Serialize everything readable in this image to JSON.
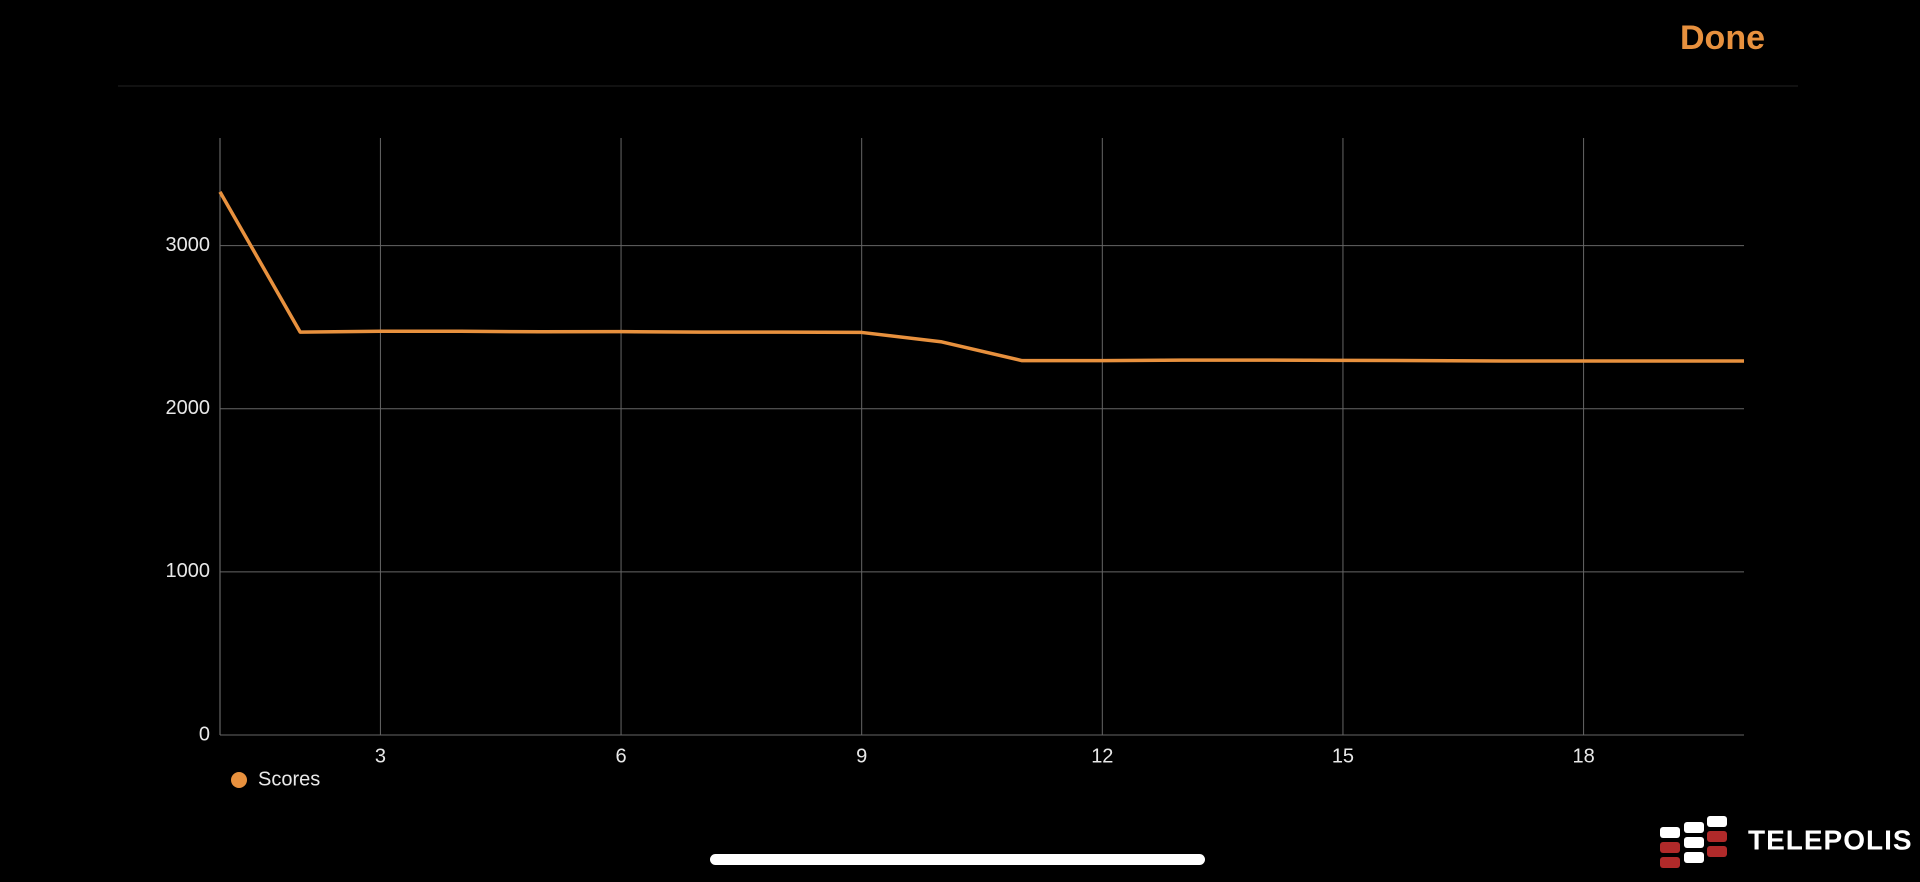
{
  "header": {
    "action": "Done"
  },
  "chart_data": {
    "type": "line",
    "x": [
      1,
      2,
      3,
      4,
      5,
      6,
      7,
      8,
      9,
      10,
      11,
      12,
      13,
      14,
      15,
      16,
      17,
      18,
      19,
      20
    ],
    "series": [
      {
        "name": "Scores",
        "color": "#e8913e",
        "values": [
          3330,
          2470,
          2475,
          2475,
          2472,
          2473,
          2470,
          2470,
          2468,
          2410,
          2295,
          2295,
          2298,
          2298,
          2297,
          2295,
          2293,
          2293,
          2293,
          2293
        ]
      }
    ],
    "xlim": [
      1,
      20
    ],
    "xticks": [
      3,
      6,
      9,
      12,
      15,
      18
    ],
    "ylim": [
      0,
      3660
    ],
    "yticks": [
      0,
      1000,
      2000,
      3000
    ],
    "grid": true,
    "legend": "bottom-left"
  },
  "watermark": "TELEPOLIS"
}
